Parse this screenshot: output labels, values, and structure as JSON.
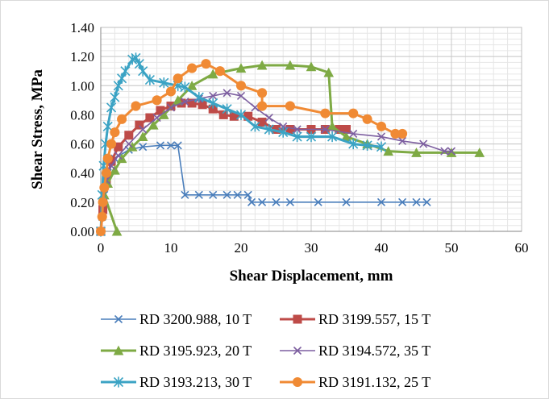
{
  "chart_data": {
    "type": "line",
    "xlabel": "Shear Displacement, mm",
    "ylabel": "Shear Stress,  MPa",
    "xlim": [
      0,
      60
    ],
    "ylim": [
      0,
      1.4
    ],
    "x_ticks": [
      "0",
      "10",
      "20",
      "30",
      "40",
      "50",
      "60"
    ],
    "y_ticks": [
      "0.00",
      "0.20",
      "0.40",
      "0.60",
      "0.80",
      "1.00",
      "1.20",
      "1.40"
    ],
    "grid": "major and minor",
    "legend_position": "bottom",
    "series": [
      {
        "name": "RD 3200.988, 10 T",
        "color": "#4a7ebb",
        "marker": "x",
        "points": [
          [
            0,
            0
          ],
          [
            0.2,
            0.1
          ],
          [
            0.5,
            0.25
          ],
          [
            1,
            0.4
          ],
          [
            2,
            0.5
          ],
          [
            4,
            0.56
          ],
          [
            6,
            0.58
          ],
          [
            8.5,
            0.59
          ],
          [
            10,
            0.59
          ],
          [
            11,
            0.59
          ],
          [
            12,
            0.25
          ],
          [
            14,
            0.25
          ],
          [
            16,
            0.25
          ],
          [
            18,
            0.25
          ],
          [
            19.5,
            0.25
          ],
          [
            21,
            0.25
          ],
          [
            21.5,
            0.2
          ],
          [
            23,
            0.2
          ],
          [
            25,
            0.2
          ],
          [
            27,
            0.2
          ],
          [
            31,
            0.2
          ],
          [
            35,
            0.2
          ],
          [
            40,
            0.2
          ],
          [
            43,
            0.2
          ],
          [
            45,
            0.2
          ],
          [
            46.5,
            0.2
          ]
        ]
      },
      {
        "name": "RD 3199.557, 15 T",
        "color": "#be4b48",
        "marker": "square",
        "points": [
          [
            0,
            0
          ],
          [
            0.3,
            0.15
          ],
          [
            0.8,
            0.35
          ],
          [
            1.5,
            0.48
          ],
          [
            2.5,
            0.58
          ],
          [
            4,
            0.66
          ],
          [
            5.5,
            0.73
          ],
          [
            7,
            0.78
          ],
          [
            8.5,
            0.83
          ],
          [
            10,
            0.86
          ],
          [
            11.5,
            0.88
          ],
          [
            13,
            0.88
          ],
          [
            14.5,
            0.87
          ],
          [
            16,
            0.84
          ],
          [
            17.5,
            0.8
          ],
          [
            19,
            0.79
          ],
          [
            21,
            0.79
          ],
          [
            23,
            0.75
          ],
          [
            25,
            0.7
          ],
          [
            27,
            0.7
          ],
          [
            30,
            0.7
          ],
          [
            32,
            0.7
          ],
          [
            34,
            0.7
          ],
          [
            35,
            0.7
          ]
        ]
      },
      {
        "name": "RD 3195.923, 20 T",
        "color": "#7eaa44",
        "marker": "triangle",
        "points": [
          [
            2.3,
            0
          ],
          [
            0.5,
            0.25
          ],
          [
            1,
            0.33
          ],
          [
            2,
            0.42
          ],
          [
            3,
            0.5
          ],
          [
            4.5,
            0.58
          ],
          [
            6,
            0.65
          ],
          [
            7.5,
            0.73
          ],
          [
            9,
            0.8
          ],
          [
            11,
            0.9
          ],
          [
            13,
            1.0
          ],
          [
            16,
            1.08
          ],
          [
            20,
            1.12
          ],
          [
            23,
            1.14
          ],
          [
            27,
            1.14
          ],
          [
            30,
            1.13
          ],
          [
            32.5,
            1.09
          ],
          [
            33,
            0.72
          ],
          [
            35,
            0.65
          ],
          [
            38,
            0.6
          ],
          [
            41,
            0.55
          ],
          [
            45,
            0.54
          ],
          [
            50,
            0.54
          ],
          [
            54,
            0.54
          ]
        ]
      },
      {
        "name": "RD 3194.572, 35 T",
        "color": "#7d5fa0",
        "marker": "x",
        "points": [
          [
            0,
            0
          ],
          [
            0.4,
            0.2
          ],
          [
            0.8,
            0.35
          ],
          [
            1.5,
            0.45
          ],
          [
            2.5,
            0.52
          ],
          [
            4,
            0.6
          ],
          [
            6,
            0.7
          ],
          [
            8,
            0.78
          ],
          [
            10,
            0.85
          ],
          [
            12,
            0.89
          ],
          [
            14,
            0.91
          ],
          [
            16,
            0.93
          ],
          [
            18,
            0.95
          ],
          [
            20,
            0.93
          ],
          [
            22,
            0.85
          ],
          [
            24,
            0.78
          ],
          [
            26,
            0.72
          ],
          [
            28,
            0.7
          ],
          [
            32,
            0.7
          ],
          [
            36,
            0.67
          ],
          [
            40,
            0.65
          ],
          [
            43,
            0.62
          ],
          [
            46,
            0.6
          ],
          [
            49,
            0.55
          ],
          [
            50,
            0.55
          ]
        ]
      },
      {
        "name": "RD 3193.213, 30 T",
        "color": "#3ba3c4",
        "marker": "star",
        "points": [
          [
            0,
            0
          ],
          [
            0.2,
            0.25
          ],
          [
            0.4,
            0.45
          ],
          [
            0.7,
            0.6
          ],
          [
            1,
            0.72
          ],
          [
            1.5,
            0.85
          ],
          [
            2,
            0.92
          ],
          [
            2.5,
            1.0
          ],
          [
            3,
            1.05
          ],
          [
            3.5,
            1.1
          ],
          [
            4.5,
            1.18
          ],
          [
            5,
            1.19
          ],
          [
            5.5,
            1.15
          ],
          [
            6,
            1.1
          ],
          [
            7,
            1.04
          ],
          [
            9,
            1.02
          ],
          [
            11,
            1.0
          ],
          [
            12,
            0.99
          ],
          [
            14,
            0.92
          ],
          [
            16,
            0.88
          ],
          [
            18,
            0.84
          ],
          [
            20,
            0.8
          ],
          [
            22,
            0.72
          ],
          [
            24,
            0.7
          ],
          [
            26,
            0.68
          ],
          [
            28,
            0.65
          ],
          [
            30,
            0.65
          ],
          [
            33,
            0.65
          ],
          [
            36,
            0.6
          ],
          [
            38,
            0.59
          ],
          [
            40,
            0.58
          ]
        ]
      },
      {
        "name": "RD 3191.132, 25 T",
        "color": "#f08a34",
        "marker": "circle",
        "points": [
          [
            0,
            0
          ],
          [
            0.2,
            0.1
          ],
          [
            0.3,
            0.2
          ],
          [
            0.5,
            0.3
          ],
          [
            0.8,
            0.4
          ],
          [
            1,
            0.5
          ],
          [
            1.5,
            0.6
          ],
          [
            2,
            0.68
          ],
          [
            3,
            0.77
          ],
          [
            5,
            0.86
          ],
          [
            8,
            0.9
          ],
          [
            10,
            0.96
          ],
          [
            11,
            1.05
          ],
          [
            13,
            1.12
          ],
          [
            15,
            1.15
          ],
          [
            17,
            1.1
          ],
          [
            20,
            1.0
          ],
          [
            23,
            0.95
          ],
          [
            23,
            0.86
          ],
          [
            27,
            0.86
          ],
          [
            32,
            0.81
          ],
          [
            36,
            0.81
          ],
          [
            38,
            0.77
          ],
          [
            40,
            0.72
          ],
          [
            42,
            0.67
          ],
          [
            43,
            0.67
          ]
        ]
      }
    ]
  }
}
